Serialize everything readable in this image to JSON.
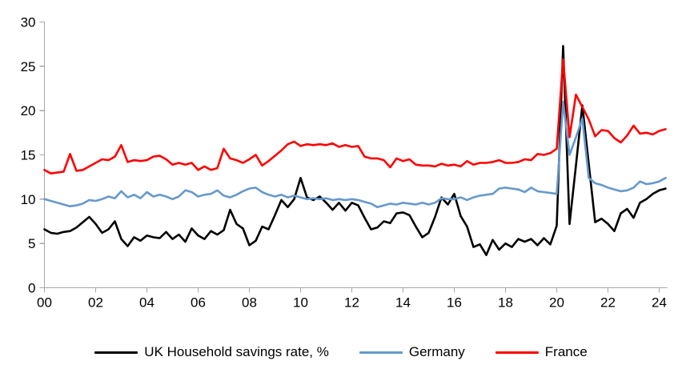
{
  "chart_data": {
    "type": "line",
    "title": "",
    "x_axis": {
      "start_year": 2000,
      "frequency": "quarterly",
      "tick_labels": [
        "00",
        "02",
        "04",
        "06",
        "08",
        "10",
        "12",
        "14",
        "16",
        "18",
        "20",
        "22",
        "24"
      ],
      "tick_interval_years": 2
    },
    "y_axis": {
      "min": 0,
      "max": 30,
      "ticks": [
        0,
        5,
        10,
        15,
        20,
        25,
        30
      ]
    },
    "grid": "off",
    "axis_color": "#A6A6A6",
    "legend_position": "bottom",
    "series": [
      {
        "name": "UK Household savings rate, %",
        "color": "#000000",
        "values": [
          6.6,
          6.2,
          6.1,
          6.3,
          6.4,
          6.8,
          7.4,
          8.0,
          7.2,
          6.2,
          6.6,
          7.5,
          5.5,
          4.7,
          5.7,
          5.3,
          5.9,
          5.7,
          5.6,
          6.3,
          5.5,
          6.0,
          5.2,
          6.7,
          5.9,
          5.5,
          6.4,
          6.0,
          6.5,
          8.8,
          7.2,
          6.7,
          4.8,
          5.3,
          6.9,
          6.6,
          8.2,
          9.9,
          9.1,
          10.0,
          12.4,
          10.2,
          9.9,
          10.3,
          9.6,
          8.8,
          9.6,
          8.7,
          9.6,
          9.3,
          7.9,
          6.6,
          6.8,
          7.5,
          7.3,
          8.4,
          8.5,
          8.2,
          6.9,
          5.7,
          6.2,
          8.0,
          10.2,
          9.4,
          10.6,
          8.1,
          6.9,
          4.6,
          4.9,
          3.7,
          5.4,
          4.3,
          5.0,
          4.6,
          5.5,
          5.2,
          5.5,
          4.8,
          5.6,
          4.9,
          7.0,
          27.3,
          7.2,
          13.8,
          20.6,
          14.0,
          7.4,
          7.8,
          7.2,
          6.4,
          8.4,
          8.9,
          7.9,
          9.6,
          10.0,
          10.6,
          11.0,
          11.2
        ]
      },
      {
        "name": "Germany",
        "color": "#6699CC",
        "values": [
          10.0,
          9.8,
          9.6,
          9.4,
          9.2,
          9.3,
          9.5,
          9.9,
          9.8,
          10.0,
          10.3,
          10.1,
          10.9,
          10.2,
          10.5,
          10.1,
          10.8,
          10.3,
          10.5,
          10.3,
          10.0,
          10.3,
          11.0,
          10.8,
          10.3,
          10.5,
          10.6,
          11.0,
          10.4,
          10.2,
          10.5,
          10.9,
          11.2,
          11.3,
          10.8,
          10.5,
          10.3,
          10.5,
          10.2,
          10.4,
          10.2,
          10.0,
          10.1,
          10.0,
          10.1,
          9.9,
          10.0,
          9.9,
          10.0,
          9.9,
          9.7,
          9.5,
          9.1,
          9.3,
          9.5,
          9.4,
          9.6,
          9.5,
          9.4,
          9.6,
          9.4,
          9.6,
          10.1,
          10.0,
          10.0,
          10.2,
          9.9,
          10.2,
          10.4,
          10.5,
          10.6,
          11.2,
          11.3,
          11.2,
          11.1,
          10.8,
          11.3,
          10.9,
          10.8,
          10.7,
          10.6,
          21.0,
          15.0,
          17.0,
          19.1,
          12.4,
          11.8,
          11.6,
          11.3,
          11.1,
          10.9,
          11.0,
          11.3,
          12.0,
          11.7,
          11.8,
          12.0,
          12.4
        ]
      },
      {
        "name": "France",
        "color": "#FF0000",
        "values": [
          13.3,
          12.9,
          13.0,
          13.1,
          15.1,
          13.2,
          13.3,
          13.7,
          14.1,
          14.5,
          14.4,
          14.8,
          16.1,
          14.2,
          14.4,
          14.3,
          14.4,
          14.8,
          14.9,
          14.5,
          13.9,
          14.1,
          13.9,
          14.1,
          13.3,
          13.7,
          13.3,
          13.5,
          15.7,
          14.6,
          14.4,
          14.1,
          14.5,
          15.0,
          13.8,
          14.3,
          14.9,
          15.5,
          16.2,
          16.5,
          16.0,
          16.2,
          16.1,
          16.2,
          16.1,
          16.3,
          15.9,
          16.1,
          15.9,
          16.0,
          14.8,
          14.6,
          14.6,
          14.4,
          13.6,
          14.6,
          14.3,
          14.5,
          13.9,
          13.8,
          13.8,
          13.7,
          14.0,
          13.8,
          13.9,
          13.7,
          14.3,
          13.9,
          14.1,
          14.1,
          14.2,
          14.4,
          14.1,
          14.1,
          14.2,
          14.5,
          14.4,
          15.1,
          15.0,
          15.2,
          15.7,
          25.8,
          17.0,
          21.8,
          20.4,
          19.0,
          17.1,
          17.8,
          17.7,
          16.9,
          16.4,
          17.2,
          18.3,
          17.4,
          17.5,
          17.3,
          17.7,
          17.9
        ]
      }
    ]
  }
}
